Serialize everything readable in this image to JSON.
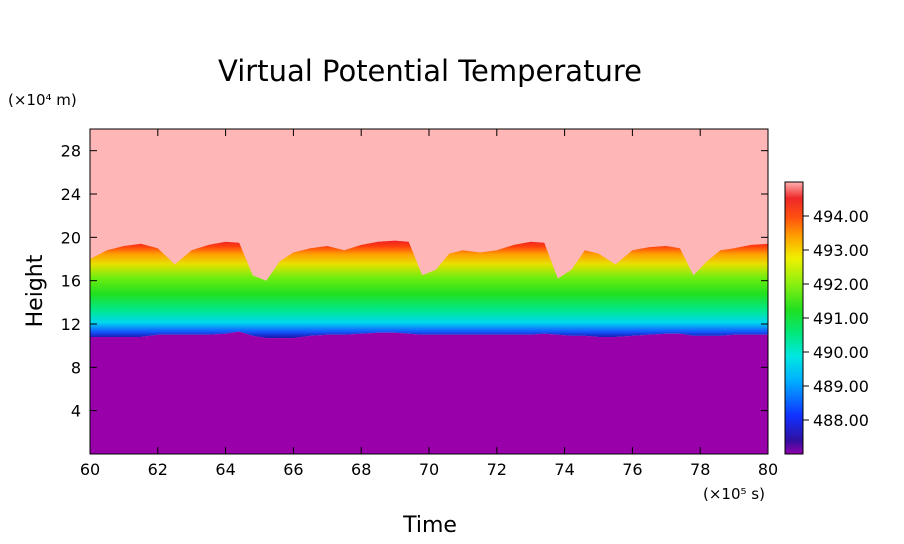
{
  "chart_data": {
    "type": "heatmap",
    "title": "Virtual Potential Temperature",
    "xlabel": "Time",
    "ylabel": "Height",
    "x_unit": "(×10⁵ s)",
    "y_unit": "(×10⁴ m)",
    "xlim": [
      60,
      80
    ],
    "ylim": [
      0,
      30
    ],
    "x_ticks": [
      "60",
      "62",
      "64",
      "66",
      "68",
      "70",
      "72",
      "74",
      "76",
      "78",
      "80"
    ],
    "y_ticks": [
      "4",
      "8",
      "12",
      "16",
      "20",
      "24",
      "28"
    ],
    "colorbar": {
      "range": [
        487,
        495
      ],
      "tick_values": [
        488,
        489,
        490,
        491,
        492,
        493,
        494
      ],
      "tick_labels": [
        "488.00",
        "489.00",
        "490.00",
        "491.00",
        "492.00",
        "493.00",
        "494.00"
      ]
    },
    "fields": {
      "lower_layer_color": "#9900aa",
      "upper_layer_color": "#ffb6b6"
    },
    "boundaries": {
      "x": [
        60,
        60.5,
        61,
        61.5,
        62,
        62.5,
        63,
        63.5,
        64,
        64.4,
        64.8,
        65.2,
        65.6,
        66,
        66.5,
        67,
        67.5,
        68,
        68.5,
        69,
        69.4,
        69.8,
        70.2,
        70.6,
        71,
        71.5,
        72,
        72.5,
        73,
        73.4,
        73.8,
        74.2,
        74.6,
        75,
        75.5,
        76,
        76.5,
        77,
        77.4,
        77.8,
        78.2,
        78.6,
        79,
        79.5,
        80
      ],
      "lower": [
        10.8,
        10.8,
        10.8,
        10.8,
        11.0,
        11.0,
        11.0,
        11.0,
        11.1,
        11.3,
        10.9,
        10.7,
        10.7,
        10.7,
        10.9,
        11.0,
        11.0,
        11.1,
        11.2,
        11.2,
        11.1,
        11.0,
        11.0,
        11.0,
        11.0,
        11.0,
        11.0,
        11.0,
        11.0,
        11.1,
        11.0,
        10.9,
        10.9,
        10.8,
        10.8,
        10.9,
        11.0,
        11.1,
        11.1,
        10.9,
        10.9,
        10.9,
        11.0,
        11.0,
        11.0
      ],
      "upper": [
        18.0,
        18.8,
        19.2,
        19.4,
        19.0,
        17.5,
        18.8,
        19.3,
        19.6,
        19.5,
        16.5,
        16.0,
        17.8,
        18.6,
        19.0,
        19.2,
        18.8,
        19.3,
        19.6,
        19.7,
        19.6,
        16.5,
        17.0,
        18.5,
        18.8,
        18.6,
        18.8,
        19.3,
        19.6,
        19.5,
        16.2,
        17.0,
        18.8,
        18.5,
        17.5,
        18.8,
        19.1,
        19.2,
        19.0,
        16.5,
        17.8,
        18.8,
        19.0,
        19.3,
        19.4
      ]
    }
  }
}
